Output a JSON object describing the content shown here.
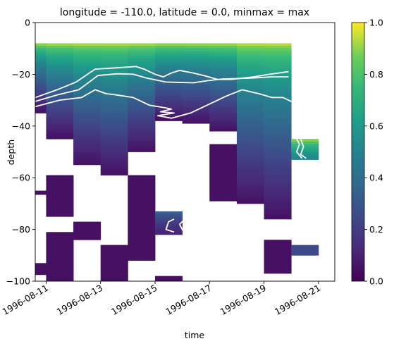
{
  "chart_data": {
    "type": "heatmap",
    "title": "longitude = -110.0, latitude = 0.0, minmax = max",
    "xlabel": "time",
    "ylabel": "depth",
    "x_ticks": [
      "1996-08-11",
      "1996-08-13",
      "1996-08-15",
      "1996-08-17",
      "1996-08-19",
      "1996-08-21"
    ],
    "y_ticks": [
      0,
      -20,
      -40,
      -60,
      -80,
      -100
    ],
    "ylim": [
      -100,
      0
    ],
    "xlim_days": [
      10.6,
      21.6
    ],
    "colorbar": {
      "colormap": "viridis",
      "range": [
        0,
        1
      ],
      "ticks": [
        "0.0",
        "0.2",
        "0.4",
        "0.6",
        "0.8",
        "1.0"
      ]
    },
    "columns": [
      {
        "time_start": "1996-08-10",
        "segments": [
          {
            "top": -8,
            "bottom": -35,
            "value_top": 1.0,
            "value_bottom": 0.05
          },
          {
            "top": -65,
            "bottom": -66.5,
            "value_top": 0.05,
            "value_bottom": 0.05
          },
          {
            "top": -93,
            "bottom": -97.5,
            "value_top": 0.05,
            "value_bottom": 0.05
          }
        ]
      },
      {
        "time_start": "1996-08-11",
        "segments": [
          {
            "top": -8,
            "bottom": -45,
            "value_top": 1.0,
            "value_bottom": 0.05
          },
          {
            "top": -59,
            "bottom": -75,
            "value_top": 0.05,
            "value_bottom": 0.05
          },
          {
            "top": -81,
            "bottom": -100,
            "value_top": 0.05,
            "value_bottom": 0.05
          }
        ]
      },
      {
        "time_start": "1996-08-12",
        "segments": [
          {
            "top": -8,
            "bottom": -55,
            "value_top": 1.0,
            "value_bottom": 0.05
          },
          {
            "top": -77,
            "bottom": -84,
            "value_top": 0.05,
            "value_bottom": 0.05
          }
        ]
      },
      {
        "time_start": "1996-08-13",
        "segments": [
          {
            "top": -8,
            "bottom": -59,
            "value_top": 1.0,
            "value_bottom": 0.05
          },
          {
            "top": -86,
            "bottom": -100,
            "value_top": 0.05,
            "value_bottom": 0.05
          }
        ]
      },
      {
        "time_start": "1996-08-14",
        "segments": [
          {
            "top": -8,
            "bottom": -50,
            "value_top": 1.0,
            "value_bottom": 0.05
          },
          {
            "top": -59,
            "bottom": -92,
            "value_top": 0.05,
            "value_bottom": 0.05
          }
        ]
      },
      {
        "time_start": "1996-08-15",
        "segments": [
          {
            "top": -8,
            "bottom": -38,
            "value_top": 1.0,
            "value_bottom": 0.05
          },
          {
            "top": -73,
            "bottom": -82,
            "value_top": 0.4,
            "value_bottom": 0.1
          },
          {
            "top": -98,
            "bottom": -100,
            "value_top": 0.05,
            "value_bottom": 0.05
          }
        ]
      },
      {
        "time_start": "1996-08-16",
        "segments": [
          {
            "top": -8,
            "bottom": -39,
            "value_top": 1.0,
            "value_bottom": 0.05
          }
        ]
      },
      {
        "time_start": "1996-08-17",
        "segments": [
          {
            "top": -8,
            "bottom": -42,
            "value_top": 1.0,
            "value_bottom": 0.05
          },
          {
            "top": -47,
            "bottom": -69,
            "value_top": 0.05,
            "value_bottom": 0.05
          }
        ]
      },
      {
        "time_start": "1996-08-18",
        "segments": [
          {
            "top": -8,
            "bottom": -70,
            "value_top": 1.0,
            "value_bottom": 0.05
          }
        ]
      },
      {
        "time_start": "1996-08-19",
        "segments": [
          {
            "top": -8,
            "bottom": -76,
            "value_top": 1.0,
            "value_bottom": 0.05
          },
          {
            "top": -84,
            "bottom": -97,
            "value_top": 0.05,
            "value_bottom": 0.05
          }
        ]
      },
      {
        "time_start": "1996-08-20",
        "segments": [
          {
            "top": -45,
            "bottom": -53,
            "value_top": 1.0,
            "value_bottom": 0.5
          },
          {
            "top": -86,
            "bottom": -90,
            "value_top": 0.25,
            "value_bottom": 0.25
          }
        ]
      }
    ],
    "contours": [
      {
        "points": [
          [
            10.6,
            -29
          ],
          [
            11.4,
            -26
          ],
          [
            12.1,
            -23
          ],
          [
            12.8,
            -18
          ],
          [
            13.6,
            -17.5
          ],
          [
            14.3,
            -17
          ],
          [
            14.6,
            -18
          ],
          [
            15.0,
            -20
          ],
          [
            15.3,
            -21
          ],
          [
            15.6,
            -19.5
          ],
          [
            15.9,
            -18.5
          ],
          [
            16.4,
            -19.5
          ],
          [
            16.8,
            -20.5
          ],
          [
            17.3,
            -22
          ],
          [
            17.8,
            -22
          ],
          [
            18.6,
            -21
          ],
          [
            19.2,
            -20
          ],
          [
            19.9,
            -19
          ]
        ]
      },
      {
        "points": [
          [
            10.6,
            -30.5
          ],
          [
            11.4,
            -28
          ],
          [
            12.2,
            -26
          ],
          [
            12.9,
            -20.5
          ],
          [
            13.6,
            -19.8
          ],
          [
            14.2,
            -20
          ],
          [
            14.7,
            -21.5
          ],
          [
            15.4,
            -23
          ],
          [
            16.4,
            -23.3
          ],
          [
            16.9,
            -22.5
          ],
          [
            17.5,
            -21.8
          ],
          [
            18.5,
            -21.5
          ],
          [
            19.3,
            -21
          ],
          [
            19.9,
            -21
          ]
        ]
      },
      {
        "points": [
          [
            10.6,
            -32.5
          ],
          [
            11.5,
            -30
          ],
          [
            12.3,
            -29
          ],
          [
            12.8,
            -26
          ],
          [
            13.2,
            -27.5
          ],
          [
            13.6,
            -28
          ],
          [
            14.2,
            -29
          ],
          [
            14.8,
            -32
          ],
          [
            15.4,
            -33
          ],
          [
            15.6,
            -33.5
          ],
          [
            15.2,
            -34.5
          ],
          [
            15.7,
            -35
          ],
          [
            15.1,
            -36
          ],
          [
            15.6,
            -37
          ],
          [
            16.3,
            -35
          ],
          [
            16.9,
            -32
          ],
          [
            17.6,
            -28.5
          ],
          [
            18.2,
            -26
          ],
          [
            18.8,
            -27.5
          ],
          [
            19.3,
            -29
          ],
          [
            19.7,
            -29
          ],
          [
            20.1,
            -31
          ]
        ]
      },
      {
        "points": [
          [
            15.7,
            -76
          ],
          [
            15.5,
            -77
          ],
          [
            15.4,
            -80
          ],
          [
            15.7,
            -81
          ]
        ]
      },
      {
        "points": [
          [
            16.1,
            -76
          ],
          [
            15.9,
            -78
          ],
          [
            16.0,
            -80
          ],
          [
            16.1,
            -82
          ]
        ]
      },
      {
        "points": [
          [
            20.2,
            -45
          ],
          [
            20.3,
            -47
          ],
          [
            20.2,
            -50
          ],
          [
            20.4,
            -52.5
          ]
        ]
      },
      {
        "points": [
          [
            20.35,
            -45
          ],
          [
            20.45,
            -48
          ],
          [
            20.35,
            -51
          ],
          [
            20.55,
            -52.5
          ]
        ]
      }
    ]
  },
  "colors": {
    "contour": "#ffffff",
    "nan": "#ffffff"
  }
}
